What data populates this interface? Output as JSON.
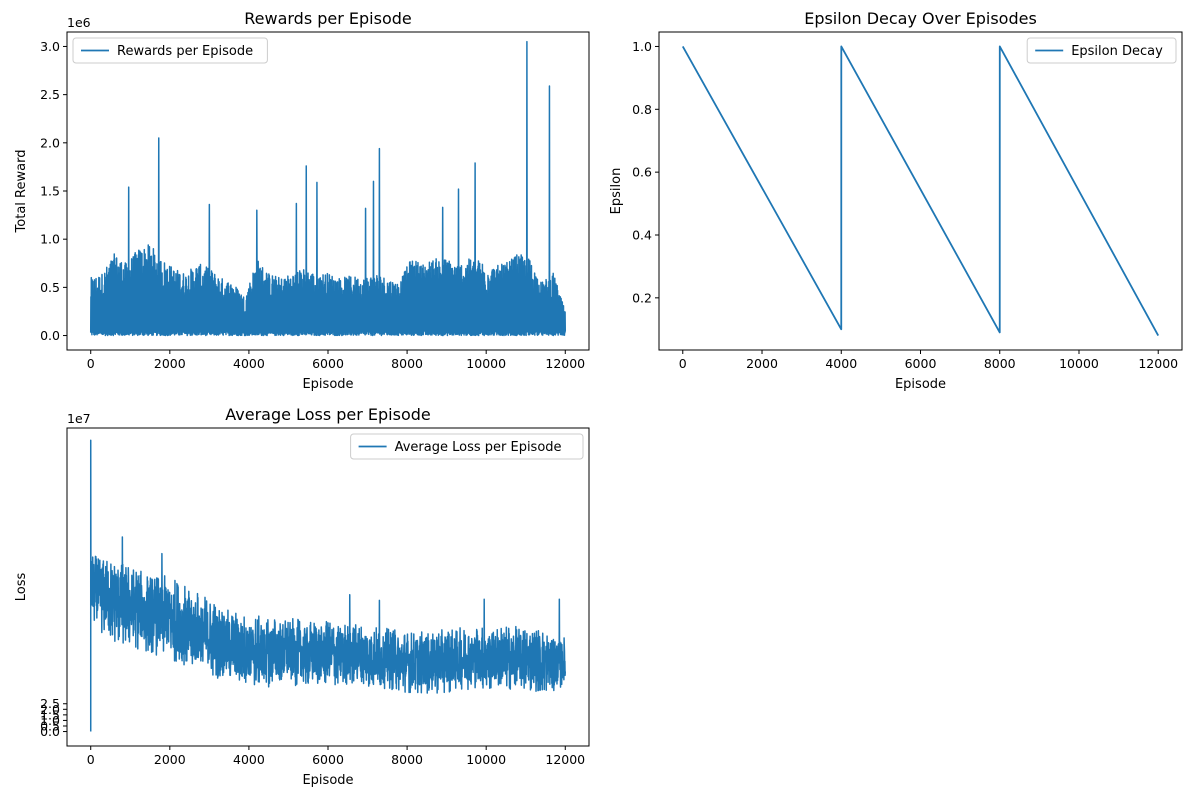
{
  "chart_data": [
    {
      "type": "line",
      "title": "Rewards per Episode",
      "xlabel": "Episode",
      "ylabel": "Total Reward",
      "y_offset_label": "1e6",
      "xlim": [
        -600,
        12600
      ],
      "ylim": [
        -0.15,
        3.15
      ],
      "xticks": [
        0,
        2000,
        4000,
        6000,
        8000,
        10000,
        12000
      ],
      "xtick_labels": [
        "0",
        "2000",
        "4000",
        "6000",
        "8000",
        "10000",
        "12000"
      ],
      "yticks": [
        0.0,
        0.5,
        1.0,
        1.5,
        2.0,
        2.5,
        3.0
      ],
      "ytick_labels": [
        "0.0",
        "0.5",
        "1.0",
        "1.5",
        "2.0",
        "2.5",
        "3.0"
      ],
      "legend_position": "top-left",
      "grid": false,
      "series": [
        {
          "name": "Rewards per Episode",
          "color": "#1f77b4",
          "x_range": [
            0,
            12000
          ],
          "y_floor": 0,
          "envelope_x": [
            0,
            300,
            600,
            900,
            1200,
            1500,
            1800,
            2100,
            2400,
            2700,
            3000,
            3300,
            3600,
            3900,
            4200,
            4500,
            4800,
            5100,
            5400,
            5700,
            6000,
            6300,
            6600,
            6900,
            7200,
            7500,
            7800,
            8100,
            8400,
            8700,
            9000,
            9300,
            9600,
            9900,
            10200,
            10500,
            10800,
            11100,
            11400,
            11700,
            12000
          ],
          "envelope_y": [
            0.6,
            0.65,
            0.85,
            0.75,
            0.9,
            0.95,
            0.8,
            0.7,
            0.65,
            0.75,
            0.7,
            0.6,
            0.55,
            0.4,
            0.8,
            0.65,
            0.6,
            0.65,
            0.7,
            0.65,
            0.65,
            0.6,
            0.62,
            0.6,
            0.65,
            0.6,
            0.55,
            0.8,
            0.75,
            0.8,
            0.8,
            0.75,
            0.8,
            0.78,
            0.72,
            0.75,
            0.85,
            0.8,
            0.55,
            0.65,
            0.25
          ],
          "peaks": [
            {
              "x": 960,
              "y": 1.54
            },
            {
              "x": 1720,
              "y": 2.05
            },
            {
              "x": 3000,
              "y": 1.36
            },
            {
              "x": 4200,
              "y": 1.3
            },
            {
              "x": 5200,
              "y": 1.37
            },
            {
              "x": 5450,
              "y": 1.76
            },
            {
              "x": 5720,
              "y": 1.59
            },
            {
              "x": 6950,
              "y": 1.32
            },
            {
              "x": 7150,
              "y": 1.6
            },
            {
              "x": 7300,
              "y": 1.94
            },
            {
              "x": 8900,
              "y": 1.33
            },
            {
              "x": 9300,
              "y": 1.52
            },
            {
              "x": 9720,
              "y": 1.79
            },
            {
              "x": 11030,
              "y": 3.05
            },
            {
              "x": 11600,
              "y": 2.59
            }
          ]
        }
      ]
    },
    {
      "type": "line",
      "title": "Epsilon Decay Over Episodes",
      "xlabel": "Episode",
      "ylabel": "Epsilon",
      "xlim": [
        -600,
        12600
      ],
      "ylim": [
        0.034,
        1.046
      ],
      "xticks": [
        0,
        2000,
        4000,
        6000,
        8000,
        10000,
        12000
      ],
      "xtick_labels": [
        "0",
        "2000",
        "4000",
        "6000",
        "8000",
        "10000",
        "12000"
      ],
      "yticks": [
        0.2,
        0.4,
        0.6,
        0.8,
        1.0
      ],
      "ytick_labels": [
        "0.2",
        "0.4",
        "0.6",
        "0.8",
        "1.0"
      ],
      "legend_position": "top-right",
      "grid": false,
      "series": [
        {
          "name": "Epsilon Decay",
          "color": "#1f77b4",
          "x": [
            0,
            4000,
            4001,
            8000,
            8001,
            12000
          ],
          "y": [
            1.0,
            0.1,
            1.0,
            0.09,
            1.0,
            0.08
          ]
        }
      ]
    },
    {
      "type": "line",
      "title": "Average Loss per Episode",
      "xlabel": "Episode",
      "ylabel": "Loss",
      "y_offset_label": "1e7",
      "xlim": [
        -600,
        12600
      ],
      "ylim": [
        -1.3,
        27.3
      ],
      "xticks": [
        0,
        2000,
        4000,
        6000,
        8000,
        10000,
        12000
      ],
      "xtick_labels": [
        "0",
        "2000",
        "4000",
        "6000",
        "8000",
        "10000",
        "12000"
      ],
      "yticks": [
        0.0,
        0.5,
        1.0,
        1.5,
        2.0,
        2.5
      ],
      "ytick_labels": [
        "0.0",
        "0.5",
        "1.0",
        "1.5",
        "2.0",
        "2.5"
      ],
      "legend_position": "top-right",
      "grid": false,
      "series": [
        {
          "name": "Average Loss per Episode",
          "color": "#1f77b4",
          "x_range": [
            0,
            12000
          ],
          "spike": {
            "x": 0,
            "ymin": 0,
            "ymax": 26.2
          },
          "upper_x": [
            0,
            200,
            500,
            1000,
            1500,
            2000,
            2500,
            3000,
            3500,
            4000,
            4500,
            5000,
            5500,
            6000,
            6500,
            7000,
            7500,
            8000,
            8500,
            9000,
            9500,
            10000,
            10500,
            11000,
            11500,
            12000
          ],
          "upper_y": [
            16.5,
            15.5,
            15.5,
            15.0,
            14.0,
            14.0,
            13.0,
            12.0,
            11.0,
            10.5,
            10.3,
            10.2,
            10.0,
            9.9,
            9.8,
            9.6,
            9.3,
            9.0,
            9.0,
            9.2,
            9.4,
            9.5,
            9.5,
            9.4,
            9.2,
            8.5
          ],
          "lower_x": [
            0,
            200,
            500,
            1000,
            1500,
            2000,
            2500,
            3000,
            3500,
            4000,
            4500,
            5000,
            5500,
            6000,
            6500,
            7000,
            7500,
            8000,
            8500,
            9000,
            9500,
            10000,
            10500,
            11000,
            11500,
            12000
          ],
          "lower_y": [
            10.0,
            9.0,
            8.0,
            7.5,
            7.0,
            6.5,
            5.5,
            5.0,
            4.5,
            4.0,
            4.0,
            4.2,
            4.0,
            4.0,
            4.2,
            4.0,
            3.8,
            3.5,
            3.3,
            3.5,
            3.8,
            3.7,
            3.8,
            3.6,
            3.4,
            4.0
          ],
          "peaks": [
            {
              "x": 800,
              "y": 17.5
            },
            {
              "x": 1800,
              "y": 16.0
            },
            {
              "x": 6550,
              "y": 12.3
            },
            {
              "x": 7300,
              "y": 11.8
            },
            {
              "x": 9950,
              "y": 11.9
            },
            {
              "x": 11850,
              "y": 11.9
            }
          ]
        }
      ]
    }
  ]
}
